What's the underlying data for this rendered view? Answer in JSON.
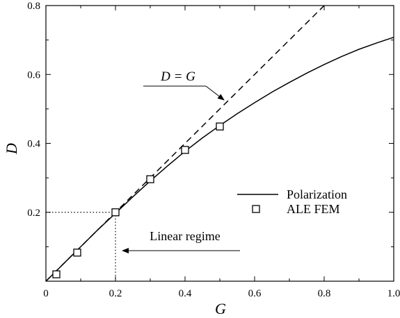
{
  "chart_data": {
    "type": "line",
    "xlabel": "G",
    "ylabel": "D",
    "xlim": [
      0,
      1.0
    ],
    "ylim": [
      0,
      0.8
    ],
    "xticks": [
      0,
      0.2,
      0.4,
      0.6,
      0.8,
      1.0
    ],
    "xtick_labels": [
      "0",
      "0.2",
      "0.4",
      "0.6",
      "0.8",
      "1.0"
    ],
    "yticks": [
      0.2,
      0.4,
      0.6,
      0.8
    ],
    "ytick_labels": [
      "0.2",
      "0.4",
      "0.6",
      "0.8"
    ],
    "grid": false,
    "legend_position": "center-right",
    "series": [
      {
        "name": "Polarization",
        "style": "solid",
        "x": [
          0,
          0.05,
          0.1,
          0.15,
          0.2,
          0.25,
          0.3,
          0.35,
          0.4,
          0.45,
          0.5,
          0.55,
          0.6,
          0.65,
          0.7,
          0.75,
          0.8,
          0.85,
          0.9,
          0.95,
          1.0
        ],
        "y": [
          0,
          0.05,
          0.1,
          0.15,
          0.197,
          0.245,
          0.291,
          0.335,
          0.377,
          0.416,
          0.452,
          0.486,
          0.518,
          0.549,
          0.577,
          0.604,
          0.629,
          0.652,
          0.673,
          0.691,
          0.708
        ]
      },
      {
        "name": "",
        "style": "dashed",
        "x": [
          0,
          0.8
        ],
        "y": [
          0,
          0.8
        ]
      },
      {
        "name": "ALE FEM",
        "style": "square-marker",
        "x": [
          0.03,
          0.09,
          0.2,
          0.3,
          0.4,
          0.5
        ],
        "y": [
          0.02,
          0.083,
          0.2,
          0.296,
          0.381,
          0.449
        ]
      }
    ],
    "reference_lines": [
      {
        "from": [
          0,
          0.2
        ],
        "to": [
          0.2,
          0.2
        ],
        "style": "dotted"
      },
      {
        "from": [
          0.2,
          0.2
        ],
        "to": [
          0.2,
          0
        ],
        "style": "dotted"
      }
    ],
    "annotations": [
      {
        "text": "D = G",
        "points_to": [
          0.53,
          0.52
        ]
      },
      {
        "text": "Linear regime",
        "points_to": [
          0.21,
          0.085
        ]
      }
    ]
  }
}
